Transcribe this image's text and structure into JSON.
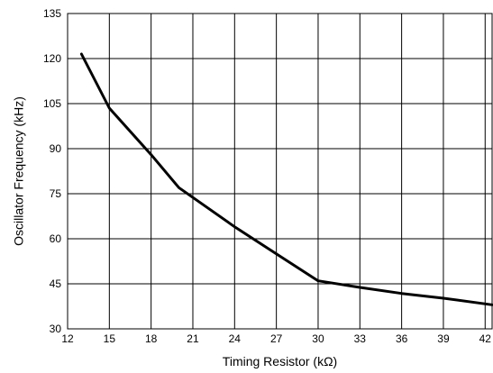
{
  "chart_data": {
    "type": "line",
    "title": "",
    "xlabel": "Timing Resistor (kΩ)",
    "ylabel": "Oscillator Frequency (kHz)",
    "xlim": [
      12,
      42.5
    ],
    "ylim": [
      30,
      135
    ],
    "x_ticks": [
      "12",
      "15",
      "18",
      "21",
      "24",
      "27",
      "30",
      "33",
      "36",
      "39",
      "42"
    ],
    "y_ticks": [
      "30",
      "45",
      "60",
      "75",
      "90",
      "105",
      "120",
      "135"
    ],
    "grid": true,
    "series": [
      {
        "x": [
          13,
          15,
          18,
          20,
          24,
          27,
          30,
          33,
          36,
          39,
          42.5
        ],
        "y": [
          121.5,
          103.5,
          88,
          77,
          64,
          55,
          46,
          43.8,
          41.8,
          40.2,
          38
        ]
      }
    ],
    "colors": {
      "line": "#000000",
      "grid": "#000000",
      "background": "#ffffff"
    }
  }
}
